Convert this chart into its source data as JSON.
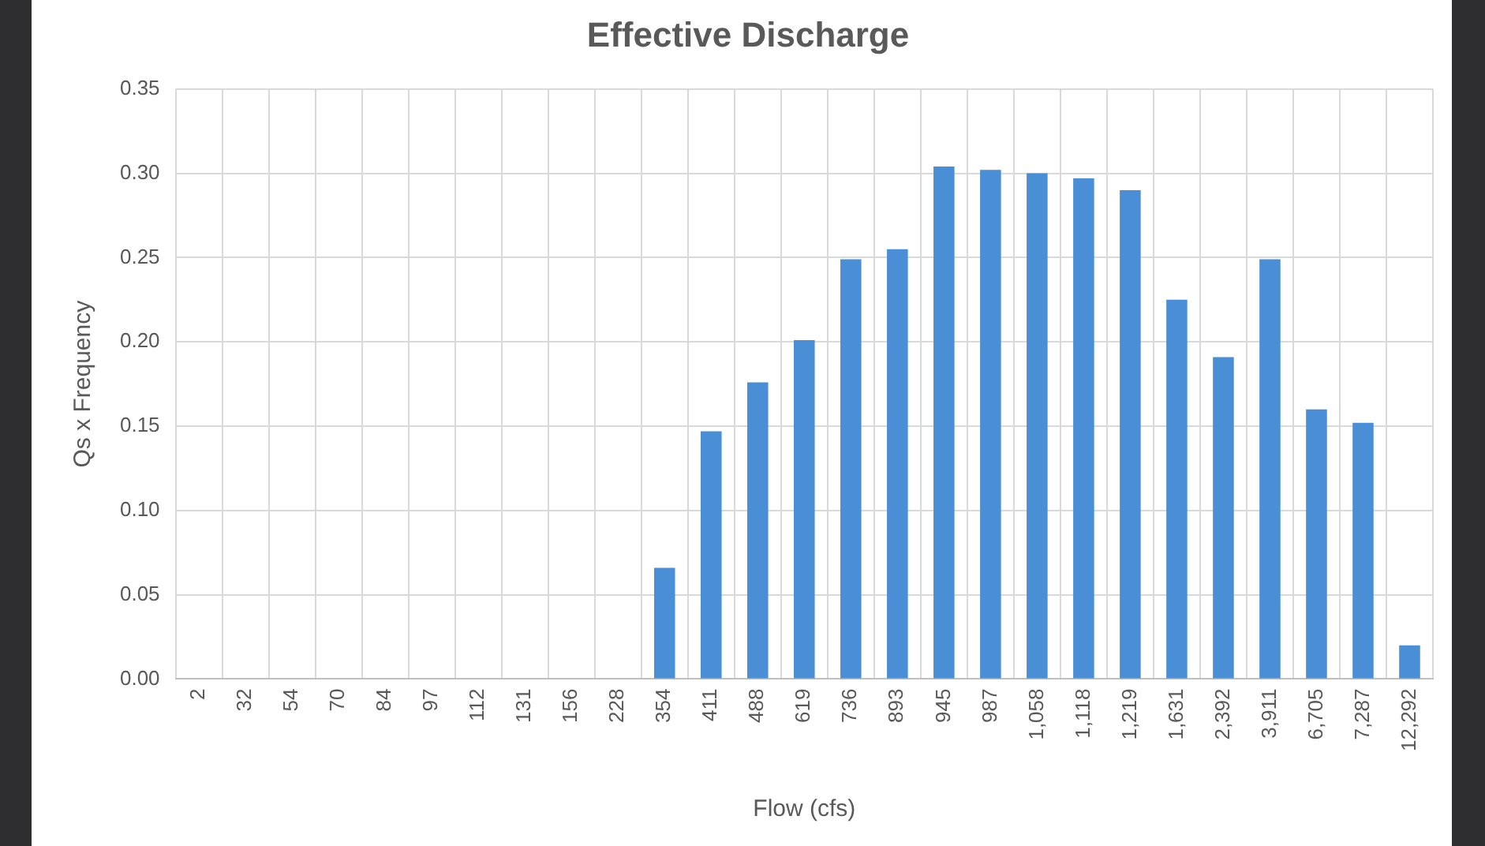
{
  "chart_data": {
    "type": "bar",
    "title": "Effective Discharge",
    "xlabel": "Flow (cfs)",
    "ylabel": "Qs x Frequency",
    "categories": [
      "2",
      "32",
      "54",
      "70",
      "84",
      "97",
      "112",
      "131",
      "156",
      "228",
      "354",
      "411",
      "488",
      "619",
      "736",
      "893",
      "945",
      "987",
      "1,058",
      "1,118",
      "1,219",
      "1,631",
      "2,392",
      "3,911",
      "6,705",
      "7,287",
      "12,292"
    ],
    "values": [
      0,
      0,
      0,
      0,
      0,
      0,
      0,
      0,
      0,
      0,
      0.066,
      0.147,
      0.176,
      0.201,
      0.249,
      0.255,
      0.304,
      0.302,
      0.3,
      0.297,
      0.29,
      0.225,
      0.191,
      0.249,
      0.16,
      0.152,
      0.02
    ],
    "color": "#4a8fd6",
    "ylim": [
      0,
      0.35
    ],
    "yticks": [
      {
        "value": 0,
        "label": "0.00"
      },
      {
        "value": 0.05,
        "label": "0.05"
      },
      {
        "value": 0.1,
        "label": "0.10"
      },
      {
        "value": 0.15,
        "label": "0.15"
      },
      {
        "value": 0.2,
        "label": "0.20"
      },
      {
        "value": 0.25,
        "label": "0.25"
      },
      {
        "value": 0.3,
        "label": "0.30"
      },
      {
        "value": 0.35,
        "label": "0.35"
      }
    ],
    "grid": true
  }
}
